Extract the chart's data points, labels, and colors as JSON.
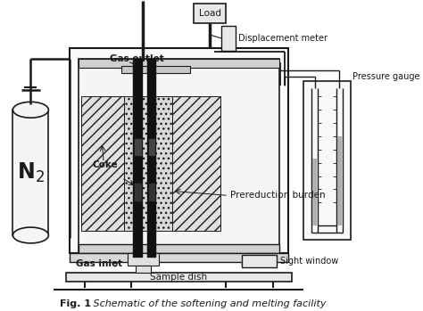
{
  "bg_color": "#ffffff",
  "line_color": "#1a1a1a",
  "fig_caption_bold": "Fig. 1",
  "fig_caption_rest": "   Schematic of the softening and melting facility",
  "labels": {
    "load": "Load",
    "displacement": "Displacement meter",
    "pressure": "Pressure gauge",
    "gas_outlet": "Gas outlet",
    "coke": "Coke",
    "prereduction": "Prereduction burden",
    "gas_inlet": "Gas inlet",
    "sight_window": "Sight window",
    "sample_dish": "Sample dish"
  }
}
